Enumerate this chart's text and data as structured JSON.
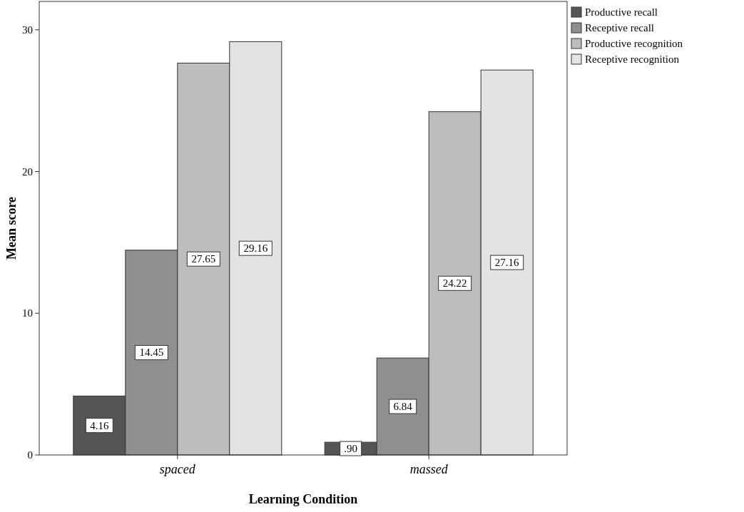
{
  "chart_data": {
    "type": "bar",
    "xlabel": "Learning Condition",
    "ylabel": "Mean score",
    "categories": [
      "spaced",
      "massed"
    ],
    "series": [
      {
        "name": "Productive recall",
        "color": "#555555",
        "values": [
          4.16,
          0.9
        ],
        "value_labels": [
          "4.16",
          ".90"
        ]
      },
      {
        "name": "Receptive recall",
        "color": "#8f8f8f",
        "values": [
          14.45,
          6.84
        ],
        "value_labels": [
          "14.45",
          "6.84"
        ]
      },
      {
        "name": "Productive recognition",
        "color": "#bdbdbd",
        "values": [
          27.65,
          24.22
        ],
        "value_labels": [
          "27.65",
          "24.22"
        ]
      },
      {
        "name": "Receptive recognition",
        "color": "#e3e3e3",
        "values": [
          29.16,
          27.16
        ],
        "value_labels": [
          "29.16",
          "27.16"
        ]
      }
    ],
    "ylim": [
      0,
      32
    ],
    "yticks": [
      0,
      10,
      20,
      30
    ],
    "legend": "top right",
    "grid": false
  }
}
